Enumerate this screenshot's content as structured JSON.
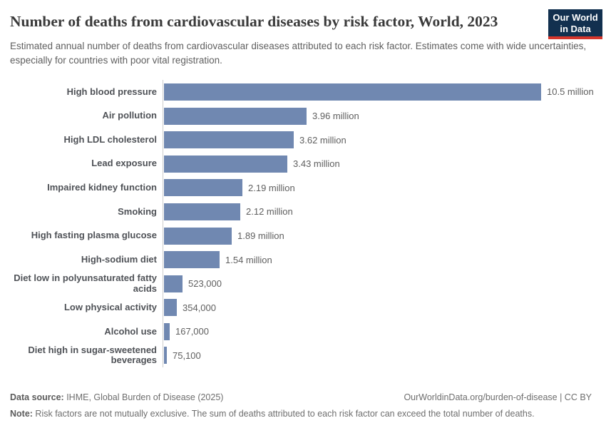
{
  "header": {
    "title": "Number of deaths from cardiovascular diseases by risk factor, World, 2023",
    "subtitle": "Estimated annual number of deaths from cardiovascular diseases attributed to each risk factor. Estimates come with wide uncertainties, especially for countries with poor vital registration.",
    "logo": {
      "line1": "Our World",
      "line2": "in Data",
      "bg_color": "#12304f",
      "stripe_color": "#d6362c"
    }
  },
  "chart_data": {
    "type": "bar",
    "orientation": "horizontal",
    "title": "Number of deaths from cardiovascular diseases by risk factor, World, 2023",
    "xlabel": "",
    "ylabel": "",
    "xlim": [
      0,
      10500000
    ],
    "grid": false,
    "legend": false,
    "bar_color": "#7088b1",
    "axis_line_color": "#cccccc",
    "categories": [
      "High blood pressure",
      "Air pollution",
      "High LDL cholesterol",
      "Lead exposure",
      "Impaired kidney function",
      "Smoking",
      "High fasting plasma glucose",
      "High-sodium diet",
      "Diet low in polyunsaturated fatty acids",
      "Low physical activity",
      "Alcohol use",
      "Diet high in sugar-sweetened beverages"
    ],
    "values": [
      10500000,
      3960000,
      3620000,
      3430000,
      2190000,
      2120000,
      1890000,
      1540000,
      523000,
      354000,
      167000,
      75100
    ],
    "value_labels": [
      "10.5 million",
      "3.96 million",
      "3.62 million",
      "3.43 million",
      "2.19 million",
      "2.12 million",
      "1.89 million",
      "1.54 million",
      "523,000",
      "354,000",
      "167,000",
      "75,100"
    ]
  },
  "footer": {
    "datasource_label": "Data source:",
    "datasource_text": " IHME, Global Burden of Disease (2025)",
    "credit": "OurWorldinData.org/burden-of-disease | CC BY",
    "note_label": "Note:",
    "note_text": " Risk factors are not mutually exclusive. The sum of deaths attributed to each risk factor can exceed the total number of deaths."
  }
}
